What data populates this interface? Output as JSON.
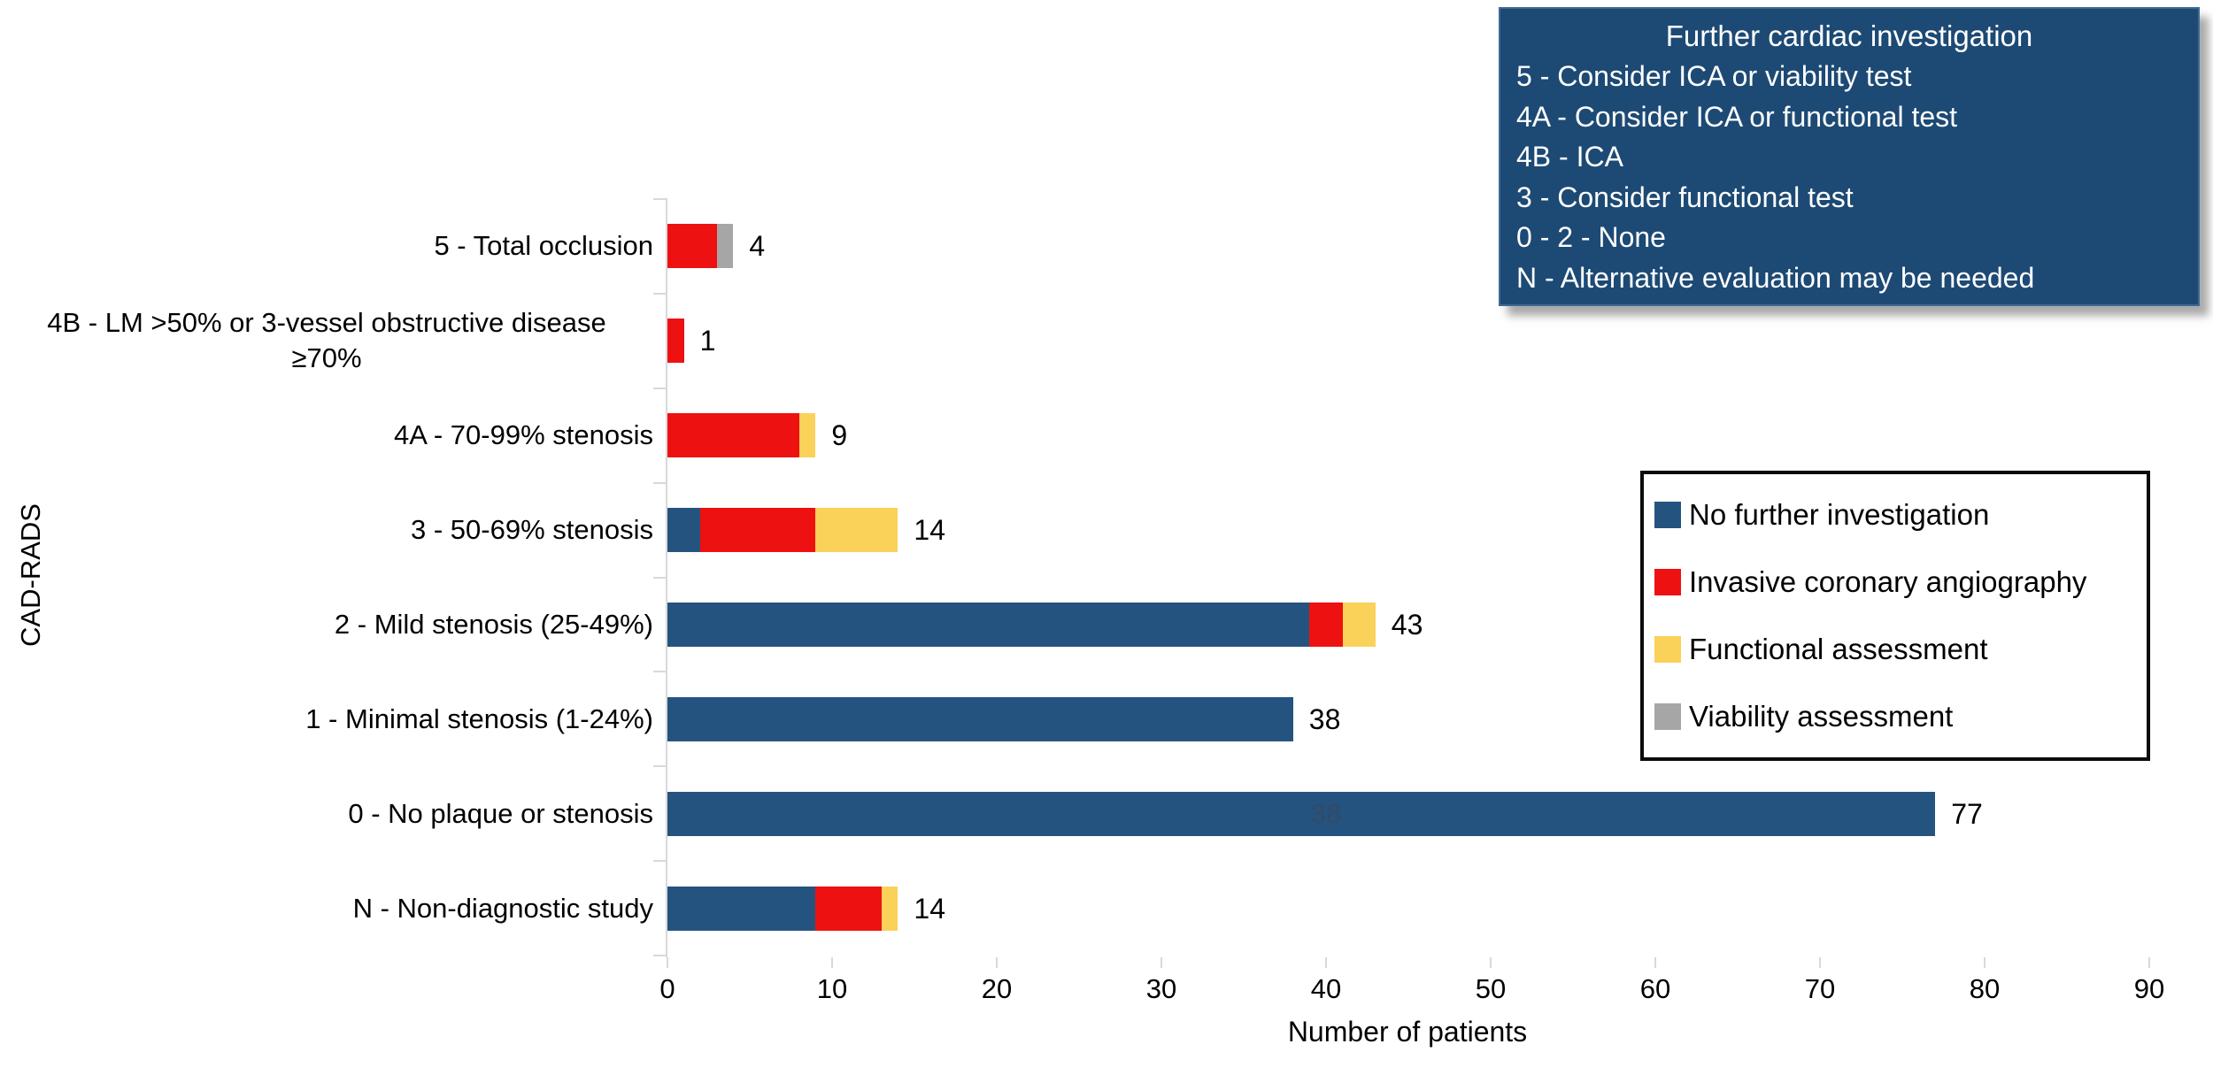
{
  "chart_data": {
    "type": "bar",
    "orientation": "horizontal-stacked",
    "title": "",
    "xlabel": "Number of patients",
    "ylabel": "CAD-RADS",
    "xlim": [
      0,
      90
    ],
    "xticks": [
      0,
      10,
      20,
      30,
      40,
      50,
      60,
      70,
      80,
      90
    ],
    "grid": false,
    "legend_position": "right-middle",
    "categories": [
      {
        "label": "5 - Total occlusion",
        "total": 4
      },
      {
        "label": "4B - LM >50% or  3-vessel obstructive disease",
        "label_line2": "≥70%",
        "total": 1
      },
      {
        "label": "4A - 70-99% stenosis",
        "total": 9
      },
      {
        "label": "3 - 50-69% stenosis",
        "total": 14
      },
      {
        "label": "2 - Mild stenosis (25-49%)",
        "total": 43
      },
      {
        "label": "1 - Minimal stenosis (1-24%)",
        "total": 38
      },
      {
        "label": "0 - No plaque or stenosis",
        "total": 77
      },
      {
        "label": "N - Non-diagnostic study",
        "total": 14
      }
    ],
    "series": [
      {
        "name": "No further investigation",
        "color": "#255380",
        "values": [
          0,
          0,
          0,
          2,
          39,
          38,
          77,
          9
        ]
      },
      {
        "name": "Invasive coronary angiography",
        "color": "#ee1111",
        "values": [
          3,
          1,
          8,
          7,
          2,
          0,
          0,
          4
        ]
      },
      {
        "name": "Functional assessment",
        "color": "#fad159",
        "values": [
          0,
          0,
          1,
          5,
          2,
          0,
          0,
          1
        ]
      },
      {
        "name": "Viability assessment",
        "color": "#a6a6a6",
        "values": [
          1,
          0,
          0,
          0,
          0,
          0,
          0,
          0
        ]
      }
    ],
    "bar_annotations": [
      {
        "row_index": 6,
        "x_value": 40,
        "text": "38",
        "style": "faint-ghost"
      }
    ]
  },
  "info_box": {
    "title": "Further cardiac investigation",
    "background": "#1d4a74",
    "items": [
      "5 - Consider ICA or viability test",
      "4A - Consider ICA or functional test",
      "4B - ICA",
      "3 - Consider functional test",
      "0 - 2 - None",
      "N - Alternative evaluation may be needed"
    ]
  },
  "legend": {
    "entries": [
      {
        "label": "No further investigation",
        "color": "#255380"
      },
      {
        "label": "Invasive coronary angiography",
        "color": "#ee1111"
      },
      {
        "label": "Functional assessment",
        "color": "#fad159"
      },
      {
        "label": "Viability assessment",
        "color": "#a6a6a6"
      }
    ]
  },
  "colors": {
    "axis": "#d9d9d9",
    "text": "#000000",
    "info_box_bg": "#1d4a74",
    "info_box_text": "#ffffff",
    "legend_border": "#0b0b0b"
  }
}
